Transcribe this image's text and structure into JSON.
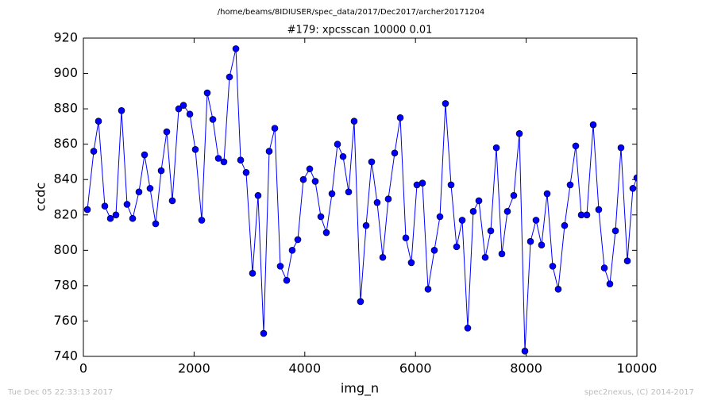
{
  "chart_data": {
    "type": "line",
    "suptitle": "/home/beams/8IDIUSER/spec_data/2017/Dec2017/archer20171204",
    "title": "#179: xpcsscan 10000 0.01",
    "xlabel": "img_n",
    "ylabel": "ccdc",
    "footer_left": "Tue Dec 05 22:33:13 2017",
    "footer_right": "spec2nexus, (C) 2014-2017",
    "x": [
      72,
      187,
      273,
      387,
      488,
      588,
      689,
      789,
      890,
      1004,
      1105,
      1205,
      1306,
      1406,
      1506,
      1607,
      1722,
      1808,
      1923,
      2023,
      2138,
      2238,
      2339,
      2439,
      2539,
      2640,
      2755,
      2841,
      2941,
      3056,
      3156,
      3257,
      3357,
      3458,
      3558,
      3673,
      3773,
      3874,
      3974,
      4089,
      4189,
      4290,
      4390,
      4491,
      4591,
      4692,
      4792,
      4892,
      5007,
      5108,
      5208,
      5308,
      5409,
      5509,
      5624,
      5725,
      5825,
      5925,
      6026,
      6126,
      6227,
      6341,
      6442,
      6542,
      6643,
      6743,
      6844,
      6944,
      7044,
      7145,
      7260,
      7360,
      7461,
      7561,
      7661,
      7776,
      7877,
      7977,
      8078,
      8178,
      8278,
      8379,
      8479,
      8579,
      8694,
      8795,
      8895,
      8996,
      9096,
      9211,
      9311,
      9412,
      9512,
      9613,
      9713,
      9828,
      9928,
      10000
    ],
    "series": [
      {
        "name": "ccdc",
        "color": "#0000ff",
        "values": [
          823,
          856,
          873,
          825,
          818,
          820,
          879,
          826,
          818,
          833,
          854,
          835,
          815,
          845,
          867,
          828,
          880,
          882,
          877,
          857,
          817,
          889,
          874,
          852,
          850,
          898,
          914,
          851,
          844,
          787,
          831,
          753,
          856,
          869,
          791,
          783,
          800,
          806,
          840,
          846,
          839,
          819,
          810,
          832,
          860,
          853,
          833,
          873,
          771,
          814,
          850,
          827,
          796,
          829,
          855,
          875,
          807,
          793,
          837,
          838,
          778,
          800,
          819,
          883,
          837,
          802,
          817,
          756,
          822,
          828,
          796,
          811,
          858,
          798,
          822,
          831,
          866,
          743,
          805,
          817,
          803,
          832,
          791,
          778,
          814,
          837,
          859,
          820,
          820,
          871,
          823,
          790,
          781,
          811,
          858,
          794,
          835,
          841
        ]
      }
    ],
    "xlim": [
      0,
      10000
    ],
    "xticks": [
      0,
      2000,
      4000,
      6000,
      8000,
      10000
    ],
    "ylim": [
      740,
      920
    ],
    "yticks": [
      740,
      760,
      780,
      800,
      820,
      840,
      860,
      880,
      900,
      920
    ]
  }
}
